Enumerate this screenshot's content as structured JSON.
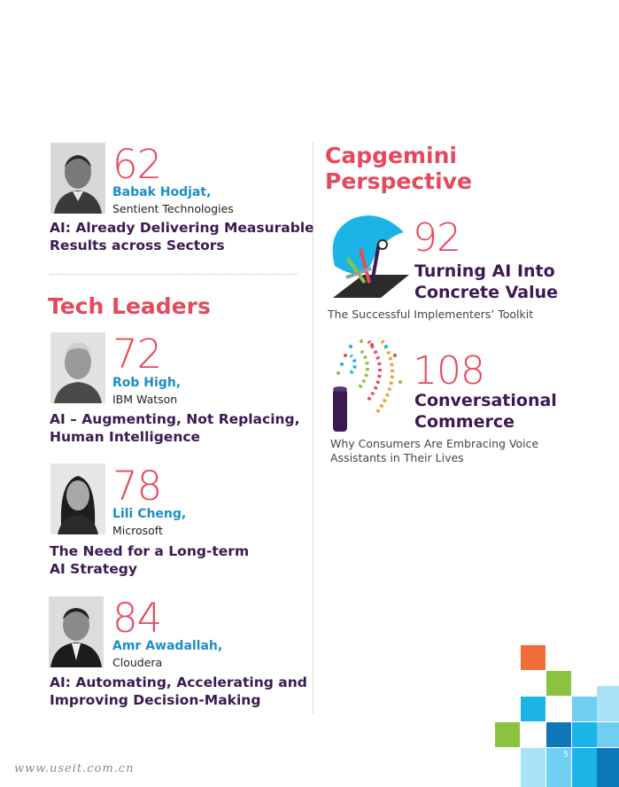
{
  "left_entries": [
    {
      "page": "62",
      "author": "Babak Hodjat,",
      "org": "Sentient Technologies",
      "title_lines": [
        "AI: Already Delivering Measurable",
        "Results across Sectors"
      ]
    },
    {
      "page": "72",
      "author": "Rob High,",
      "org": "IBM Watson",
      "title_lines": [
        "AI – Augmenting, Not Replacing,",
        "Human Intelligence"
      ]
    },
    {
      "page": "78",
      "author": "Lili Cheng,",
      "org": "Microsoft",
      "title_lines": [
        "The Need for a Long-term",
        "AI Strategy"
      ]
    },
    {
      "page": "84",
      "author": "Amr Awadallah,",
      "org": "Cloudera",
      "title_lines": [
        "AI: Automating, Accelerating and",
        "Improving Decision-Making"
      ]
    }
  ],
  "section_tech_leaders": "Tech Leaders",
  "section_capgemini": [
    "Capgemini",
    "Perspective"
  ],
  "right_entries": [
    {
      "page": "92",
      "title_lines": [
        "Turning AI Into",
        "Concrete Value"
      ],
      "subtitle_lines": [
        "The Successful Implementers’ Toolkit"
      ]
    },
    {
      "page": "108",
      "title_lines": [
        "Conversational",
        "Commerce"
      ],
      "subtitle_lines": [
        "Why Consumers Are Embracing Voice",
        "Assistants in Their Lives"
      ]
    }
  ],
  "page_number": "5",
  "watermark": "www.useit.com.cn",
  "colors": {
    "accent_red": "#e5495d",
    "author_blue": "#1b8ec9",
    "title_purple": "#3b1a52"
  }
}
